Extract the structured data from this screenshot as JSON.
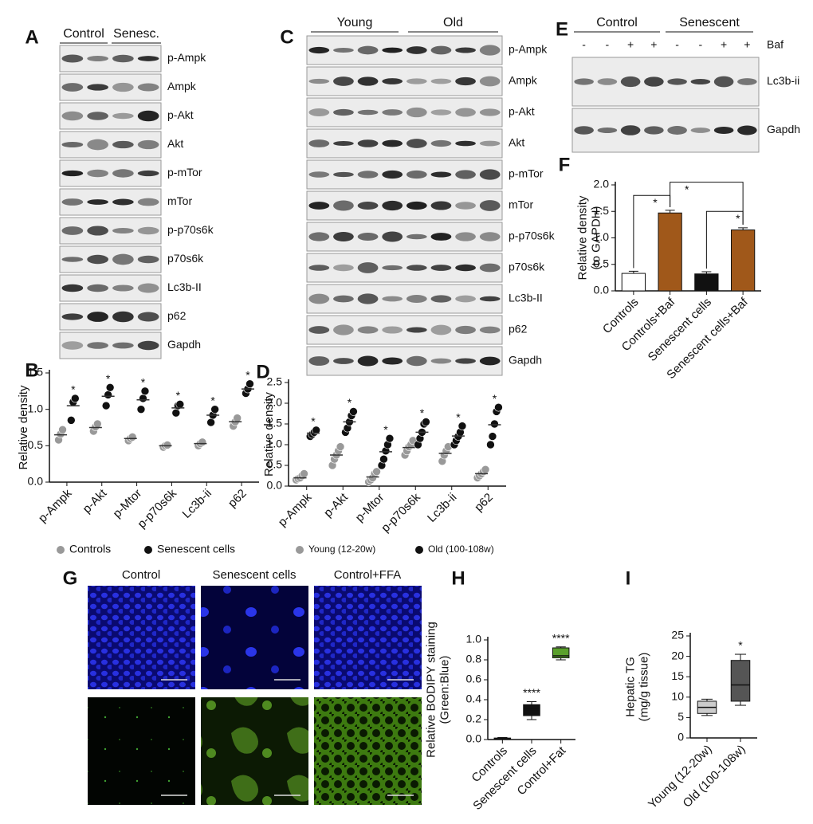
{
  "panel_labels": [
    "A",
    "B",
    "C",
    "D",
    "E",
    "F",
    "G",
    "H",
    "I"
  ],
  "blot_a": {
    "groups": [
      "Control",
      "Senesc."
    ],
    "bands": [
      "p-Ampk",
      "Ampk",
      "p-Akt",
      "Akt",
      "p-mTor",
      "mTor",
      "p-p70s6k",
      "p70s6k",
      "Lc3b-II",
      "p62",
      "Gapdh"
    ]
  },
  "blot_c": {
    "groups": [
      "Young",
      "Old"
    ],
    "bands": [
      "p-Ampk",
      "Ampk",
      "p-Akt",
      "Akt",
      "p-mTor",
      "mTor",
      "p-p70s6k",
      "p70s6k",
      "Lc3b-II",
      "p62",
      "Gapdh"
    ]
  },
  "blot_e": {
    "groups": [
      "Control",
      "Senescent"
    ],
    "treatment": "Baf",
    "lanes": [
      "-",
      "-",
      "+",
      "+",
      "-",
      "-",
      "+",
      "+"
    ],
    "bands": [
      "Lc3b-ii",
      "Gapdh"
    ]
  },
  "micro_g": {
    "columns": [
      "Control",
      "Senescent cells",
      "Control+FFA"
    ]
  },
  "chart_data": [
    {
      "type": "dotplot",
      "ylabel": [
        "Relative density"
      ],
      "categories": [
        "p-Ampk",
        "p-Akt",
        "p-Mtor",
        "p-p70s6k",
        "Lc3b-ii",
        "p62"
      ],
      "series": [
        {
          "name": "Controls",
          "color": "#999999",
          "values": [
            0.65,
            0.75,
            0.6,
            0.5,
            0.53,
            0.83
          ],
          "points": [
            [
              0.58,
              0.66,
              0.72
            ],
            [
              0.7,
              0.76,
              0.8
            ],
            [
              0.57,
              0.6,
              0.62
            ],
            [
              0.48,
              0.5,
              0.51
            ],
            [
              0.5,
              0.53,
              0.55
            ],
            [
              0.77,
              0.83,
              0.88
            ]
          ]
        },
        {
          "name": "Senescent cells",
          "color": "#111111",
          "values": [
            1.05,
            1.18,
            1.13,
            1.02,
            0.92,
            1.28
          ],
          "points": [
            [
              0.85,
              1.1,
              1.15
            ],
            [
              1.05,
              1.2,
              1.3
            ],
            [
              1.0,
              1.15,
              1.25
            ],
            [
              0.95,
              1.05,
              1.07
            ],
            [
              0.82,
              0.92,
              1.0
            ],
            [
              1.22,
              1.28,
              1.35
            ]
          ]
        }
      ],
      "annotations": [
        "*",
        "*",
        "*",
        "*",
        "*",
        "*"
      ],
      "ylim": [
        0,
        1.5
      ],
      "yticks": [
        {
          "value": 0,
          "label": "0.0"
        },
        0.5,
        {
          "value": 1,
          "label": "1.0"
        },
        1.5
      ]
    },
    {
      "type": "dotplot",
      "ylabel": [
        "Relative density"
      ],
      "categories": [
        "p-Ampk",
        "p-Akt",
        "p-Mtor",
        "p-p70s6k",
        "Lc3b-ii",
        "p62"
      ],
      "series": [
        {
          "name": "Young (12-20w)",
          "color": "#999999",
          "values": [
            0.2,
            0.75,
            0.22,
            0.93,
            0.79,
            0.3
          ],
          "points": [
            [
              0.15,
              0.18,
              0.2,
              0.25,
              0.3
            ],
            [
              0.5,
              0.65,
              0.75,
              0.85,
              0.95
            ],
            [
              0.1,
              0.15,
              0.2,
              0.3,
              0.35
            ],
            [
              0.75,
              0.85,
              0.95,
              1.0,
              1.1
            ],
            [
              0.6,
              0.75,
              0.85,
              0.95
            ],
            [
              0.2,
              0.25,
              0.3,
              0.35,
              0.4
            ]
          ]
        },
        {
          "name": "Old (100-108w)",
          "color": "#111111",
          "values": [
            1.28,
            1.55,
            0.83,
            1.3,
            1.21,
            1.48
          ],
          "points": [
            [
              1.2,
              1.25,
              1.3,
              1.35
            ],
            [
              1.3,
              1.4,
              1.55,
              1.7,
              1.8
            ],
            [
              0.5,
              0.65,
              0.85,
              1.0,
              1.15
            ],
            [
              1.0,
              1.15,
              1.3,
              1.5,
              1.55
            ],
            [
              1.0,
              1.1,
              1.2,
              1.3,
              1.45
            ],
            [
              1.0,
              1.2,
              1.5,
              1.8,
              1.9
            ]
          ]
        }
      ],
      "annotations": [
        "*",
        "*",
        "*",
        "*",
        "*",
        "*"
      ],
      "ylim": [
        0,
        2.5
      ],
      "yticks": [
        {
          "value": 0,
          "label": "0.0"
        },
        0.5,
        {
          "value": 1,
          "label": "1.0"
        },
        1.5,
        {
          "value": 2,
          "label": "2.0"
        },
        2.5
      ]
    },
    {
      "type": "bar",
      "ylabel": [
        "Relative density",
        "(to GAPDH)"
      ],
      "categories": [
        "Controls",
        "Controls+Baf",
        "Senescent cells",
        "Senescent cells+Baf"
      ],
      "values": [
        0.33,
        1.47,
        0.32,
        1.15
      ],
      "errors": [
        0.04,
        0.05,
        0.04,
        0.04
      ],
      "colors": [
        "#ffffff",
        "#a0581a",
        "#111111",
        "#a0581a"
      ],
      "annotations": [
        "*",
        "*",
        "*"
      ],
      "ylim": [
        0,
        2
      ],
      "yticks": [
        {
          "value": 0,
          "label": "0.0"
        },
        0.5,
        {
          "value": 1,
          "label": "1.0"
        },
        1.5,
        {
          "value": 2,
          "label": "2.0"
        }
      ]
    },
    {
      "type": "box",
      "ylabel": [
        "Relative BODIPY staining",
        "(Green:Blue)"
      ],
      "categories": [
        "Controls",
        "Senescent cells",
        "Control+Fat"
      ],
      "boxes": [
        [
          0,
          0.01,
          0.01,
          0.015,
          0.02
        ],
        [
          0.2,
          0.24,
          0.3,
          0.35,
          0.38
        ],
        [
          0.8,
          0.82,
          0.84,
          0.92,
          0.93
        ]
      ],
      "colors": [
        "#ffffff",
        "#111111",
        "#5aa02c"
      ],
      "annotations": [
        null,
        "****",
        "****"
      ],
      "ylim": [
        0,
        1
      ],
      "yticks": [
        {
          "value": 0,
          "label": "0.0"
        },
        0.2,
        0.4,
        0.6,
        0.8,
        {
          "value": 1,
          "label": "1.0"
        }
      ]
    },
    {
      "type": "box",
      "ylabel": [
        "Hepatic TG",
        "(mg/g tissue)"
      ],
      "categories": [
        "Young (12-20w)",
        "Old (100-108w)"
      ],
      "boxes": [
        [
          5.5,
          6,
          7.5,
          9,
          9.5
        ],
        [
          8,
          9,
          13,
          19,
          20.5
        ]
      ],
      "colors": [
        "#cccccc",
        "#555555"
      ],
      "annotations": [
        null,
        "*"
      ],
      "ylim": [
        0,
        25
      ],
      "yticks": [
        0,
        5,
        10,
        15,
        20,
        25
      ]
    }
  ]
}
